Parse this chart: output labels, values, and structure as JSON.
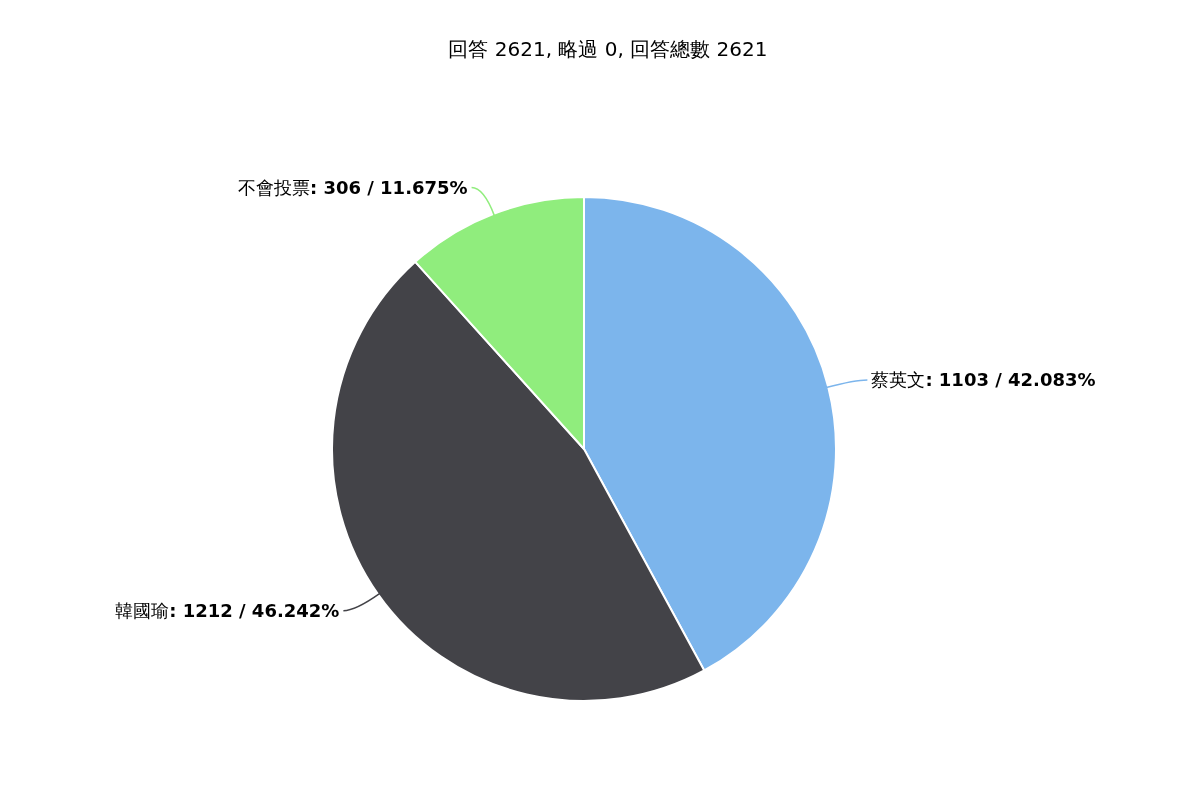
{
  "chart_data": {
    "type": "pie",
    "title": "回答 2621, 略過 0, 回答總數 2621",
    "categories": [
      "蔡英文",
      "韓國瑜",
      "不會投票"
    ],
    "values": [
      1103,
      1212,
      306
    ],
    "colors": [
      "#7cb5ec",
      "#434348",
      "#90ed7d"
    ],
    "value_labels": [
      ": 1103 / 42.083%",
      ": 1212 / 46.242%",
      ": 306 / 11.675%"
    ]
  }
}
